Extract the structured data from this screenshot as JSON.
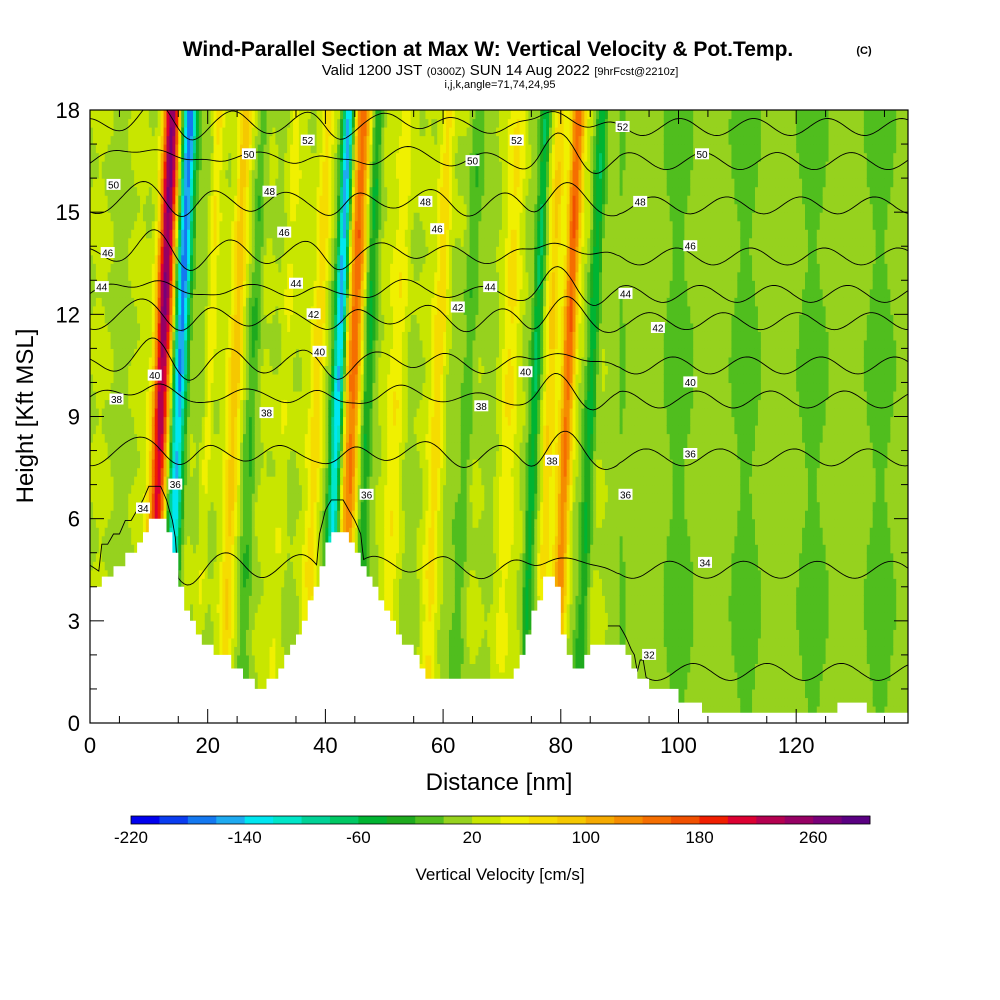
{
  "chart_data": {
    "type": "heatmap",
    "title": "Wind-Parallel Section at Max W: Vertical Velocity & Pot.Temp.",
    "title_mark": "(C)",
    "subtitle": {
      "part1": "Valid 1200 JST",
      "part2": "(0300Z)",
      "part3": "SUN 14 Aug 2022",
      "part4": "[9hrFcst@2210z]"
    },
    "subtitle2": "i,j,k,angle=71,74,24,95",
    "xlabel": "Distance [nm]",
    "ylabel": "Height [Kft MSL]",
    "xlim": [
      0,
      139
    ],
    "ylim": [
      0,
      18
    ],
    "x_ticks": [
      0,
      20,
      40,
      60,
      80,
      100,
      120
    ],
    "y_ticks": [
      0,
      3,
      6,
      9,
      12,
      15,
      18
    ],
    "colorbar": {
      "title": "Vertical Velocity [cm/s]",
      "tick_labels": [
        "-220",
        "-140",
        "-60",
        "20",
        "100",
        "180",
        "260"
      ],
      "tick_values": [
        -220,
        -140,
        -60,
        20,
        100,
        180,
        260
      ],
      "levels": [
        -220,
        -200,
        -180,
        -160,
        -140,
        -120,
        -100,
        -80,
        -60,
        -40,
        -20,
        0,
        20,
        40,
        60,
        80,
        100,
        120,
        140,
        160,
        180,
        200,
        220,
        240,
        260,
        280
      ],
      "colors": [
        "#0000ee",
        "#0a3cf0",
        "#1478f0",
        "#1eaaf0",
        "#00e6f0",
        "#00e6c8",
        "#00d296",
        "#00c864",
        "#00b432",
        "#1eaa1e",
        "#50be1e",
        "#96d21e",
        "#c8e600",
        "#f0f000",
        "#f5dc00",
        "#f5c800",
        "#f5aa00",
        "#f58c00",
        "#f56e00",
        "#f05000",
        "#f01e00",
        "#dc0032",
        "#b40050",
        "#960064",
        "#780078",
        "#5a0082"
      ]
    },
    "velocity_bands": [
      {
        "x": 12,
        "w": 1.4,
        "amp": 250
      },
      {
        "x": 15,
        "w": 1.2,
        "amp": -200
      },
      {
        "x": 20,
        "w": 0.8,
        "amp": 40
      },
      {
        "x": 24.5,
        "w": 1.2,
        "amp": 80
      },
      {
        "x": 27.5,
        "w": 1.0,
        "amp": -40
      },
      {
        "x": 33,
        "w": 1.2,
        "amp": 30
      },
      {
        "x": 38.5,
        "w": 1.2,
        "amp": 60
      },
      {
        "x": 42,
        "w": 1.0,
        "amp": -180
      },
      {
        "x": 44.5,
        "w": 1.4,
        "amp": 140
      },
      {
        "x": 47,
        "w": 1.0,
        "amp": -60
      },
      {
        "x": 52,
        "w": 1.5,
        "amp": 40
      },
      {
        "x": 59,
        "w": 1.2,
        "amp": 60
      },
      {
        "x": 64,
        "w": 1.2,
        "amp": -40
      },
      {
        "x": 71,
        "w": 1.5,
        "amp": 40
      },
      {
        "x": 75.5,
        "w": 0.8,
        "amp": -80
      },
      {
        "x": 78,
        "w": 1.0,
        "amp": 60
      },
      {
        "x": 81,
        "w": 1.2,
        "amp": 150
      },
      {
        "x": 85,
        "w": 1.0,
        "amp": -80
      }
    ],
    "terrain": {
      "x": [
        0,
        1,
        2,
        3,
        4,
        5,
        6,
        7,
        8,
        9,
        10,
        11,
        12,
        13,
        14,
        15,
        16,
        17,
        18,
        19,
        20,
        21,
        22,
        23,
        24,
        25,
        26,
        27,
        28,
        29,
        30,
        31,
        32,
        33,
        34,
        35,
        36,
        37,
        38,
        39,
        40,
        41,
        42,
        43,
        44,
        45,
        46,
        47,
        48,
        49,
        50,
        51,
        52,
        53,
        54,
        55,
        56,
        57,
        58,
        59,
        60,
        61,
        62,
        63,
        64,
        65,
        66,
        67,
        68,
        69,
        70,
        71,
        72,
        73,
        74,
        75,
        76,
        77,
        78,
        79,
        80,
        81,
        82,
        83,
        84,
        85,
        86,
        87,
        88,
        89,
        90,
        91,
        92,
        93,
        94,
        95,
        96,
        97,
        98,
        99,
        100,
        101,
        102,
        103,
        104,
        105,
        106,
        107,
        108,
        109,
        110,
        111,
        112,
        113,
        114,
        115,
        116,
        117,
        118,
        119,
        120,
        121,
        122,
        123,
        124,
        125,
        126,
        127,
        128,
        129,
        130,
        131,
        132,
        133,
        134,
        135,
        136,
        137,
        138,
        139
      ],
      "height": [
        4.0,
        4.0,
        4.3,
        4.3,
        4.6,
        4.6,
        5.0,
        5.0,
        5.3,
        5.6,
        6.0,
        6.0,
        6.0,
        5.6,
        5.0,
        4.0,
        3.3,
        3.0,
        2.6,
        2.3,
        2.3,
        2.0,
        2.0,
        2.0,
        1.6,
        1.6,
        1.3,
        1.3,
        1.0,
        1.0,
        1.3,
        1.3,
        1.6,
        2.0,
        2.3,
        2.6,
        3.0,
        3.6,
        4.0,
        4.6,
        5.3,
        5.6,
        5.6,
        5.6,
        5.3,
        5.0,
        4.6,
        4.3,
        4.0,
        3.6,
        3.3,
        3.0,
        2.6,
        2.3,
        2.3,
        2.0,
        1.6,
        1.3,
        1.3,
        1.3,
        1.3,
        1.3,
        1.3,
        1.3,
        1.3,
        1.3,
        1.3,
        1.3,
        1.3,
        1.3,
        1.3,
        1.3,
        1.6,
        2.0,
        2.6,
        3.3,
        3.6,
        4.3,
        4.3,
        4.0,
        2.6,
        2.0,
        1.6,
        1.6,
        2.0,
        2.3,
        2.3,
        2.3,
        2.3,
        2.3,
        2.3,
        2.0,
        1.6,
        1.3,
        1.3,
        1.0,
        1.0,
        1.0,
        1.0,
        1.0,
        0.6,
        0.6,
        0.6,
        0.6,
        0.3,
        0.3,
        0.3,
        0.3,
        0.3,
        0.3,
        0.3,
        0.3,
        0.3,
        0.3,
        0.3,
        0.3,
        0.3,
        0.3,
        0.3,
        0.3,
        0.3,
        0.3,
        0.3,
        0.3,
        0.3,
        0.3,
        0.3,
        0.6,
        0.6,
        0.6,
        0.6,
        0.6,
        0.3,
        0.3,
        0.3,
        0.3,
        0.3,
        0.3,
        0.3,
        0.3
      ]
    },
    "isentropes": [
      {
        "theta": 32,
        "base_height": 1.5,
        "label_x": 95
      },
      {
        "theta": 34,
        "base_height": 4.5,
        "label_x": 100
      },
      {
        "theta": 36,
        "base_height": 7.8,
        "label_x": 88
      },
      {
        "theta": 38,
        "base_height": 9.5,
        "label_x": 30
      },
      {
        "theta": 40,
        "base_height": 10.5,
        "label_x": 75
      },
      {
        "theta": 42,
        "base_height": 11.8,
        "label_x": 95
      },
      {
        "theta": 44,
        "base_height": 12.6,
        "label_x": 90
      },
      {
        "theta": 46,
        "base_height": 13.7,
        "label_x": 100
      },
      {
        "theta": 48,
        "base_height": 15.2,
        "label_x": 92
      },
      {
        "theta": 50,
        "base_height": 16.5,
        "label_x": 105
      },
      {
        "theta": 52,
        "base_height": 17.5,
        "label_x": 90
      }
    ]
  },
  "annotations": {
    "contour_labels": [
      {
        "text": "34",
        "x": 9,
        "y": 6.3
      },
      {
        "text": "36",
        "x": 14.5,
        "y": 7.0
      },
      {
        "text": "40",
        "x": 11,
        "y": 10.2
      },
      {
        "text": "38",
        "x": 4.5,
        "y": 9.5
      },
      {
        "text": "44",
        "x": 2,
        "y": 12.8
      },
      {
        "text": "46",
        "x": 3,
        "y": 13.8
      },
      {
        "text": "50",
        "x": 4,
        "y": 15.8
      },
      {
        "text": "50",
        "x": 27,
        "y": 16.7
      },
      {
        "text": "52",
        "x": 37,
        "y": 17.1
      },
      {
        "text": "48",
        "x": 30.5,
        "y": 15.6
      },
      {
        "text": "46",
        "x": 33,
        "y": 14.4
      },
      {
        "text": "44",
        "x": 35,
        "y": 12.9
      },
      {
        "text": "42",
        "x": 38,
        "y": 12.0
      },
      {
        "text": "40",
        "x": 39,
        "y": 10.9
      },
      {
        "text": "38",
        "x": 30,
        "y": 9.1
      },
      {
        "text": "36",
        "x": 47,
        "y": 6.7
      },
      {
        "text": "48",
        "x": 57,
        "y": 15.3
      },
      {
        "text": "46",
        "x": 59,
        "y": 14.5
      },
      {
        "text": "42",
        "x": 62.5,
        "y": 12.2
      },
      {
        "text": "44",
        "x": 68,
        "y": 12.8
      },
      {
        "text": "50",
        "x": 65,
        "y": 16.5
      },
      {
        "text": "52",
        "x": 72.5,
        "y": 17.1
      },
      {
        "text": "38",
        "x": 66.5,
        "y": 9.3
      },
      {
        "text": "40",
        "x": 74,
        "y": 10.3
      },
      {
        "text": "38",
        "x": 78.5,
        "y": 7.7
      },
      {
        "text": "36",
        "x": 91,
        "y": 6.7
      },
      {
        "text": "52",
        "x": 90.5,
        "y": 17.5
      },
      {
        "text": "48",
        "x": 93.5,
        "y": 15.3
      },
      {
        "text": "44",
        "x": 91,
        "y": 12.6
      },
      {
        "text": "42",
        "x": 96.5,
        "y": 11.6
      },
      {
        "text": "46",
        "x": 102,
        "y": 14.0
      },
      {
        "text": "50",
        "x": 104,
        "y": 16.7
      },
      {
        "text": "40",
        "x": 102,
        "y": 10.0
      },
      {
        "text": "36",
        "x": 102,
        "y": 7.9
      },
      {
        "text": "34",
        "x": 104.5,
        "y": 4.7
      },
      {
        "text": "32",
        "x": 95,
        "y": 2.0
      }
    ]
  }
}
